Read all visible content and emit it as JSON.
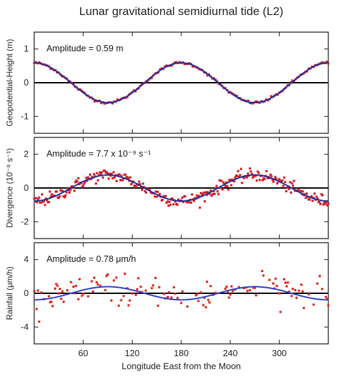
{
  "figure": {
    "title": "Lunar gravitational semidiurnal tide (L2)",
    "xlabel": "Longitude East from the Moon"
  },
  "chart_data": [
    {
      "type": "line",
      "panel": "geopotential",
      "ylabel": "Geopotential-Height (m)",
      "annotation": "Amplitude = 0.59 m",
      "amplitude": 0.59,
      "phase_peak_deg": [
        0,
        180,
        360
      ],
      "xlim": [
        0,
        360
      ],
      "ylim": [
        -1.5,
        1.5
      ],
      "xticks": [
        60,
        120,
        180,
        240,
        300
      ],
      "yticks": [
        -1,
        0,
        1
      ],
      "ytick_labels": [
        "-1",
        "0",
        "1"
      ],
      "series": [
        {
          "values_kind": "fitted curve: 0.59*cos(2*lon)",
          "color": "#1f2f9a"
        },
        {
          "values_kind": "data points (low scatter)",
          "color": "#cc1a2a",
          "scatter": 0.02
        }
      ],
      "zero_line": true
    },
    {
      "type": "line",
      "panel": "divergence",
      "ylabel": "Divergence (10⁻⁸ s⁻¹)",
      "annotation": "Amplitude = 7.7 x 10⁻⁹ s⁻¹",
      "amplitude": 0.77,
      "phase_peak_deg": [
        90,
        270
      ],
      "xlim": [
        0,
        360
      ],
      "ylim": [
        -3,
        3
      ],
      "xticks": [
        60,
        120,
        180,
        240,
        300
      ],
      "yticks": [
        -2,
        0,
        2
      ],
      "ytick_labels": [
        "-2",
        "0",
        "2"
      ],
      "series": [
        {
          "values_kind": "fitted curve: 0.77*cos(2*(lon-90))",
          "color": "#1f2f9a"
        },
        {
          "values_kind": "data points (moderate scatter)",
          "color": "#d41a24",
          "scatter": 0.18
        }
      ],
      "zero_line": true
    },
    {
      "type": "scatter",
      "panel": "rainfall",
      "ylabel": "Rainfall (μm/h)",
      "annotation": "Amplitude = 0.78 μm/h",
      "amplitude": 0.78,
      "phase_peak_deg": [
        90,
        270
      ],
      "xlim": [
        0,
        360
      ],
      "ylim": [
        -6,
        6
      ],
      "xticks": [
        60,
        120,
        180,
        240,
        300
      ],
      "yticks": [
        -4,
        0,
        4
      ],
      "ytick_labels": [
        "-4",
        "0",
        "4"
      ],
      "series": [
        {
          "values_kind": "fitted curve: 0.78*cos(2*(lon-90))",
          "color": "#2a3fc4"
        },
        {
          "values_kind": "data points (large scatter)",
          "color": "#e0241a",
          "scatter": 0.9
        }
      ],
      "zero_line": true
    }
  ],
  "colors": {
    "axes": "#111111",
    "curve": "#1f2f9a",
    "points": "#d0202a",
    "zero": "#000000"
  }
}
